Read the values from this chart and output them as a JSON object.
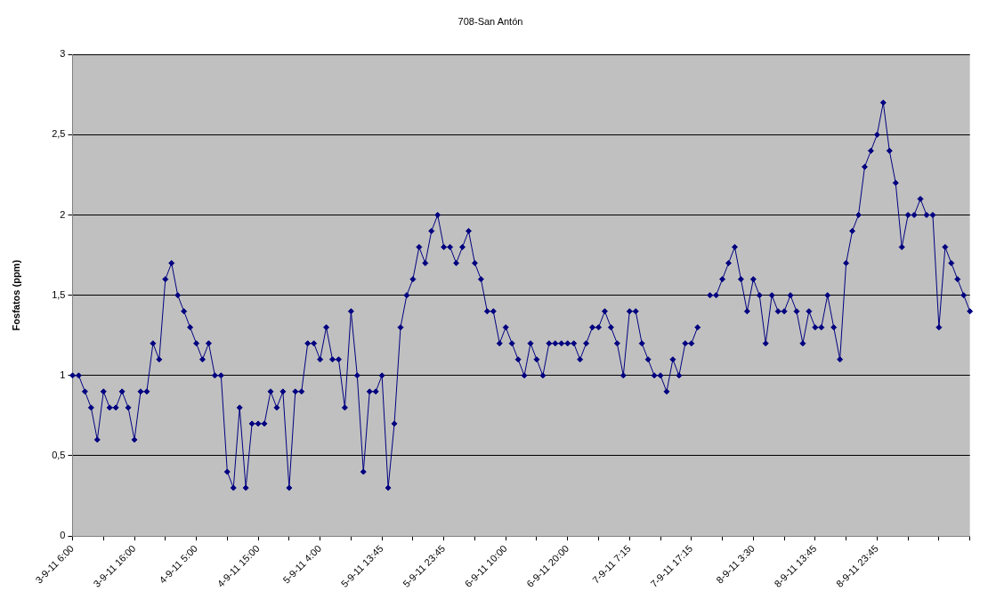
{
  "chart_data": {
    "type": "line",
    "title": "708-San Antón",
    "ylabel": "Fosfatos (ppm)",
    "categories": [
      "3-9-11 6:00",
      null,
      null,
      null,
      null,
      null,
      null,
      null,
      null,
      null,
      "3-9-11 16:00",
      null,
      null,
      null,
      null,
      null,
      null,
      null,
      null,
      null,
      "4-9-11 5:00",
      null,
      null,
      null,
      null,
      null,
      null,
      null,
      null,
      null,
      "4-9-11 15:00",
      null,
      null,
      null,
      null,
      null,
      null,
      null,
      null,
      null,
      "5-9-11 4:00",
      null,
      null,
      null,
      null,
      null,
      null,
      null,
      null,
      null,
      "5-9-11 13:45",
      null,
      null,
      null,
      null,
      null,
      null,
      null,
      null,
      null,
      "5-9-11 23:45",
      null,
      null,
      null,
      null,
      null,
      null,
      null,
      null,
      null,
      "6-9-11 10:00",
      null,
      null,
      null,
      null,
      null,
      null,
      null,
      null,
      null,
      "6-9-11 20:00",
      null,
      null,
      null,
      null,
      null,
      null,
      null,
      null,
      null,
      "7-9-11 7:15",
      null,
      null,
      null,
      null,
      null,
      null,
      null,
      null,
      null,
      "7-9-11 17:15",
      null,
      null,
      null,
      null,
      null,
      null,
      null,
      null,
      null,
      "8-9-11 3:30",
      null,
      null,
      null,
      null,
      null,
      null,
      null,
      null,
      null,
      "8-9-11 13:45",
      null,
      null,
      null,
      null,
      null,
      null,
      null,
      null,
      null,
      "8-9-11 23:45",
      null,
      null,
      null,
      null,
      null,
      null,
      null,
      null,
      null,
      null,
      null,
      null,
      null,
      null,
      null
    ],
    "series": [
      {
        "color": "#000080",
        "values": [
          1,
          1,
          0.9,
          0.8,
          0.6,
          0.9,
          0.8,
          0.8,
          0.9,
          0.8,
          0.6,
          0.9,
          0.9,
          1.2,
          1.1,
          1.6,
          1.7,
          1.5,
          1.4,
          1.3,
          1.2,
          1.1,
          1.2,
          1.0,
          1.0,
          0.4,
          0.3,
          0.8,
          0.3,
          0.7,
          0.7,
          0.7,
          0.9,
          0.8,
          0.9,
          0.3,
          0.9,
          0.9,
          1.2,
          1.2,
          1.1,
          1.3,
          1.1,
          1.1,
          0.8,
          1.4,
          1.0,
          0.4,
          0.9,
          0.9,
          1.0,
          0.3,
          0.7,
          1.3,
          1.5,
          1.6,
          1.8,
          1.7,
          1.9,
          2.0,
          1.8,
          1.8,
          1.7,
          1.8,
          1.9,
          1.7,
          1.6,
          1.4,
          1.4,
          1.2,
          1.3,
          1.2,
          1.1,
          1.0,
          1.2,
          1.1,
          1.0,
          1.2,
          1.2,
          1.2,
          1.2,
          1.2,
          1.1,
          1.2,
          1.3,
          1.3,
          1.4,
          1.3,
          1.2,
          1.0,
          1.4,
          1.4,
          1.2,
          1.1,
          1.0,
          1.0,
          0.9,
          1.1,
          1.0,
          1.2,
          1.2,
          1.3,
          null,
          1.5,
          1.5,
          1.6,
          1.7,
          1.8,
          1.6,
          1.4,
          1.6,
          1.5,
          1.2,
          1.5,
          1.4,
          1.4,
          1.5,
          1.4,
          1.2,
          1.4,
          1.3,
          1.3,
          1.5,
          1.3,
          1.1,
          1.7,
          1.9,
          2.0,
          2.3,
          2.4,
          2.5,
          2.7,
          2.4,
          2.2,
          1.8,
          2.0,
          2.0,
          2.1,
          2.0,
          2.0,
          1.3,
          1.8,
          1.7,
          1.6,
          1.5,
          1.4
        ]
      }
    ],
    "ylim": [
      0,
      3
    ],
    "yticks": [
      0,
      {
        "value": 0.5,
        "label": "0,5"
      },
      1,
      {
        "value": 1.5,
        "label": "1,5"
      },
      2,
      {
        "value": 2.5,
        "label": "2,5"
      },
      3
    ],
    "grid": "y",
    "legend": false,
    "marker": "diamond",
    "line_style": "solid"
  }
}
